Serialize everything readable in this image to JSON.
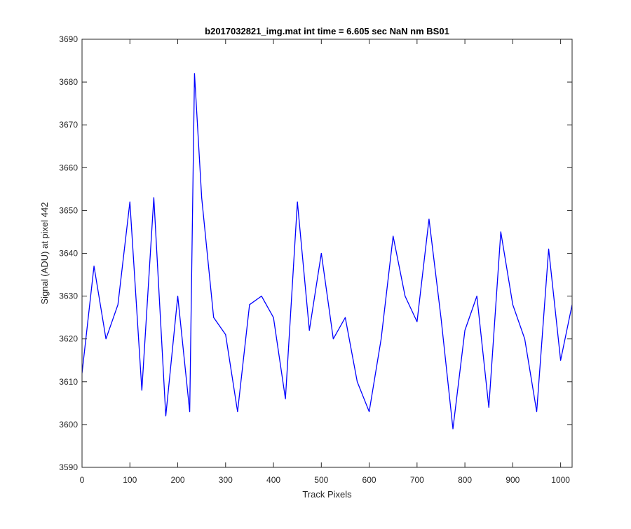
{
  "chart_data": {
    "type": "line",
    "title": "b2017032821_img.mat int time = 6.605 sec  NaN nm BS01",
    "xlabel": "Track Pixels",
    "ylabel": "Signal (ADU) at pixel 442",
    "xlim": [
      0,
      1024
    ],
    "ylim": [
      3590,
      3690
    ],
    "xticks": [
      0,
      100,
      200,
      300,
      400,
      500,
      600,
      700,
      800,
      900,
      1000
    ],
    "yticks": [
      3590,
      3600,
      3610,
      3620,
      3630,
      3640,
      3650,
      3660,
      3670,
      3680,
      3690
    ],
    "grid": false,
    "legend": "none",
    "series": [
      {
        "color": "#0000ff",
        "x": [
          0,
          25,
          50,
          75,
          100,
          125,
          150,
          175,
          200,
          225,
          235,
          250,
          275,
          300,
          325,
          350,
          375,
          400,
          425,
          450,
          475,
          500,
          525,
          550,
          575,
          600,
          625,
          650,
          675,
          700,
          725,
          750,
          775,
          800,
          825,
          850,
          875,
          900,
          925,
          950,
          975,
          1000,
          1024
        ],
        "values": [
          3612,
          3637,
          3620,
          3628,
          3652,
          3608,
          3653,
          3602,
          3630,
          3603,
          3682,
          3653,
          3625,
          3621,
          3603,
          3628,
          3630,
          3625,
          3606,
          3652,
          3622,
          3640,
          3620,
          3625,
          3610,
          3603,
          3620,
          3644,
          3630,
          3624,
          3648,
          3625,
          3599,
          3622,
          3630,
          3604,
          3645,
          3628,
          3620,
          3603,
          3641,
          3615,
          3628
        ]
      }
    ]
  }
}
